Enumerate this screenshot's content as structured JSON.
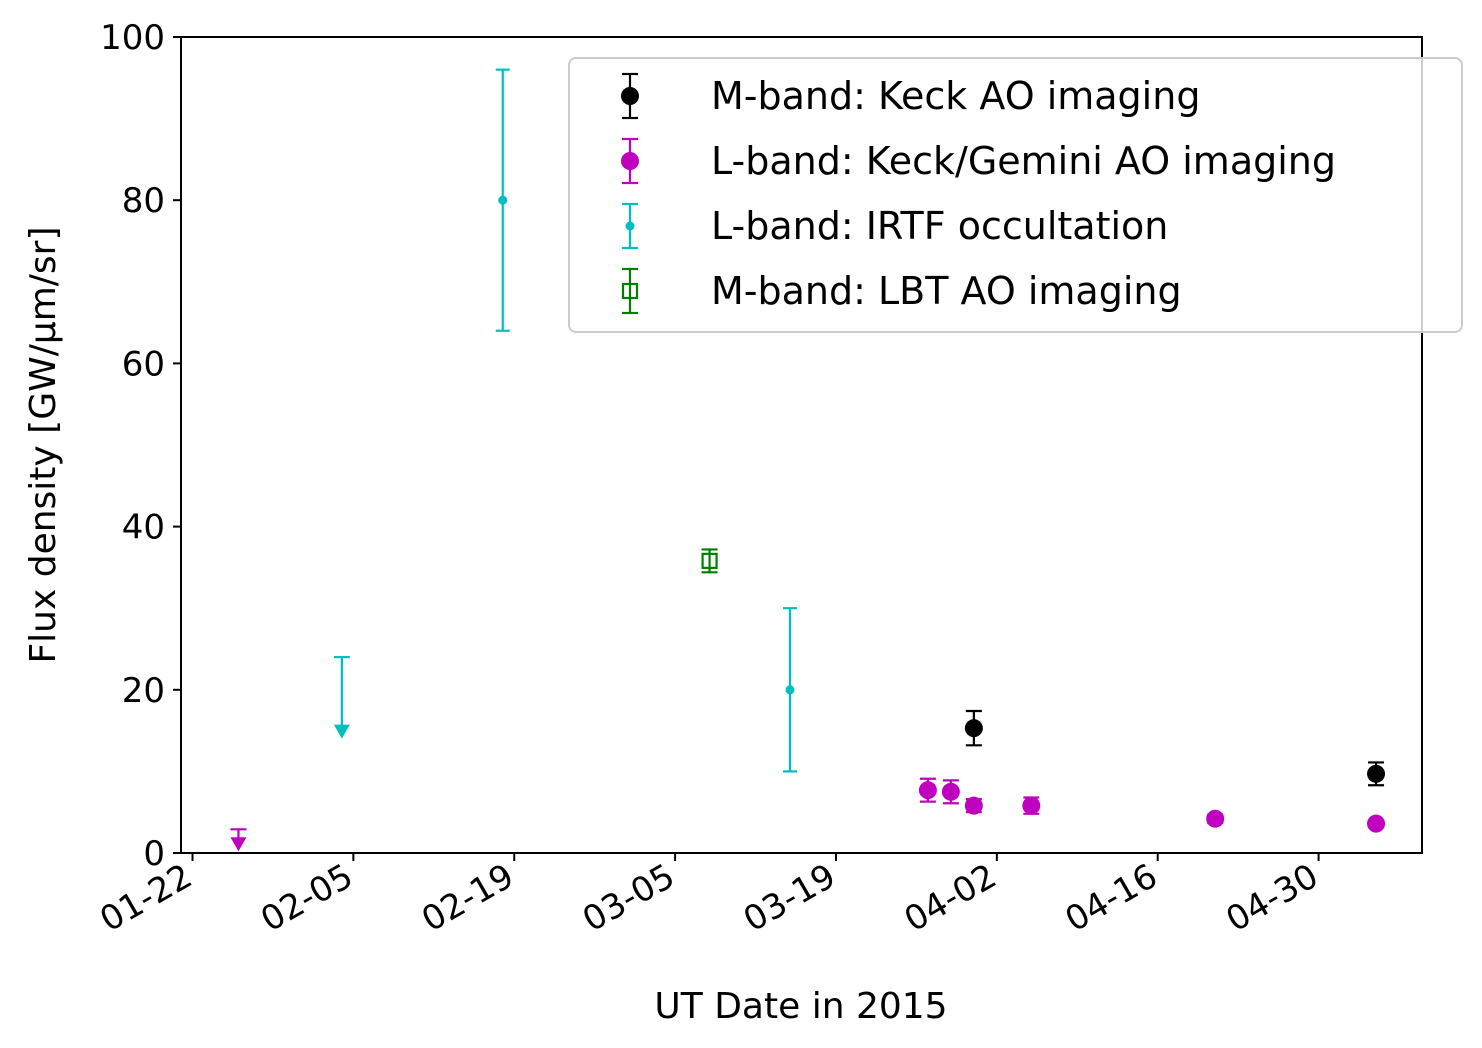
{
  "chart_data": {
    "type": "scatter",
    "title": "",
    "xlabel": "UT Date in 2015",
    "ylabel": "Flux density [GW/μm/sr]",
    "ylim": [
      0,
      100
    ],
    "xlim": [
      "2015-01-21",
      "2015-05-09"
    ],
    "yticks": [
      0,
      20,
      40,
      60,
      80,
      100
    ],
    "xticks": [
      "2015-01-22",
      "2015-02-05",
      "2015-02-19",
      "2015-03-05",
      "2015-03-19",
      "2015-04-02",
      "2015-04-16",
      "2015-04-30"
    ],
    "xtick_labels": [
      "01-22",
      "02-05",
      "02-19",
      "03-05",
      "03-19",
      "04-02",
      "04-16",
      "04-30"
    ],
    "legend_position": "top-right",
    "grid": false,
    "series": [
      {
        "name": "M-band: Keck AO imaging",
        "color": "#000000",
        "marker": "filled-circle",
        "points": [
          {
            "x": "2015-03-31",
            "y": 15.3,
            "ylow": 13.2,
            "yhigh": 17.4
          },
          {
            "x": "2015-05-05",
            "y": 9.7,
            "ylow": 8.3,
            "yhigh": 11.1
          }
        ]
      },
      {
        "name": "L-band: Keck/Gemini AO imaging",
        "color": "#bf00bf",
        "marker": "filled-circle",
        "points": [
          {
            "x": "2015-01-26",
            "y": 1.2,
            "ylow": 1.2,
            "yhigh": 2.9,
            "upper_limit": true
          },
          {
            "x": "2015-03-27",
            "y": 7.7,
            "ylow": 6.3,
            "yhigh": 9.1
          },
          {
            "x": "2015-03-29",
            "y": 7.5,
            "ylow": 6.1,
            "yhigh": 8.9
          },
          {
            "x": "2015-03-31",
            "y": 5.8,
            "ylow": 5.0,
            "yhigh": 6.6
          },
          {
            "x": "2015-04-05",
            "y": 5.8,
            "ylow": 4.8,
            "yhigh": 6.8
          },
          {
            "x": "2015-04-21",
            "y": 4.2,
            "ylow": 3.7,
            "yhigh": 4.7
          },
          {
            "x": "2015-05-05",
            "y": 3.6,
            "ylow": 3.3,
            "yhigh": 3.9
          }
        ]
      },
      {
        "name": "L-band: IRTF occultation",
        "color": "#00bfbf",
        "marker": "small-dot",
        "points": [
          {
            "x": "2015-02-04",
            "y": 15.0,
            "ylow": 15.0,
            "yhigh": 24.0,
            "upper_limit": true
          },
          {
            "x": "2015-02-18",
            "y": 80.0,
            "ylow": 64.0,
            "yhigh": 96.0
          },
          {
            "x": "2015-03-15",
            "y": 20.0,
            "ylow": 10.0,
            "yhigh": 30.0
          }
        ]
      },
      {
        "name": "M-band: LBT AO imaging",
        "color": "#008000",
        "marker": "open-square",
        "points": [
          {
            "x": "2015-03-08",
            "y": 35.8,
            "ylow": 34.4,
            "yhigh": 37.2
          }
        ]
      }
    ]
  }
}
